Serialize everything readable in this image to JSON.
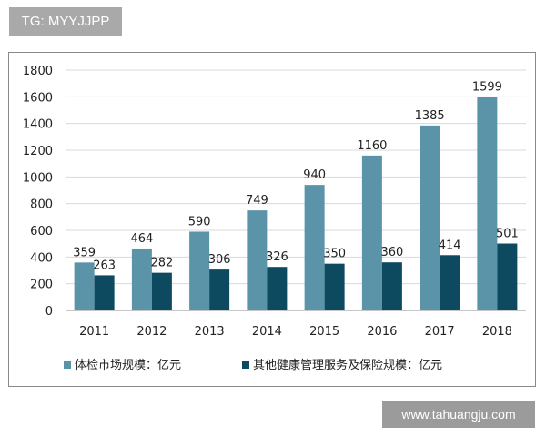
{
  "watermark_top": "TG: MYYJJPP",
  "watermark_bottom": "www.tahuangju.com",
  "chart_data": {
    "type": "bar",
    "categories": [
      "2011",
      "2012",
      "2013",
      "2014",
      "2015",
      "2016",
      "2017",
      "2018"
    ],
    "series": [
      {
        "name": "体检市场规模：亿元",
        "values": [
          359,
          464,
          590,
          749,
          940,
          1160,
          1385,
          1599
        ],
        "color": "#5b93a8"
      },
      {
        "name": "其他健康管理服务及保险规模：亿元",
        "values": [
          263,
          282,
          306,
          326,
          350,
          360,
          414,
          501
        ],
        "color": "#0d4a5f"
      }
    ],
    "yticks": [
      0,
      200,
      400,
      600,
      800,
      1000,
      1200,
      1400,
      1600,
      1800
    ],
    "ylim": [
      0,
      1800
    ],
    "grid": true,
    "legend": "bottom-left",
    "title": "",
    "xlabel": "",
    "ylabel": ""
  }
}
